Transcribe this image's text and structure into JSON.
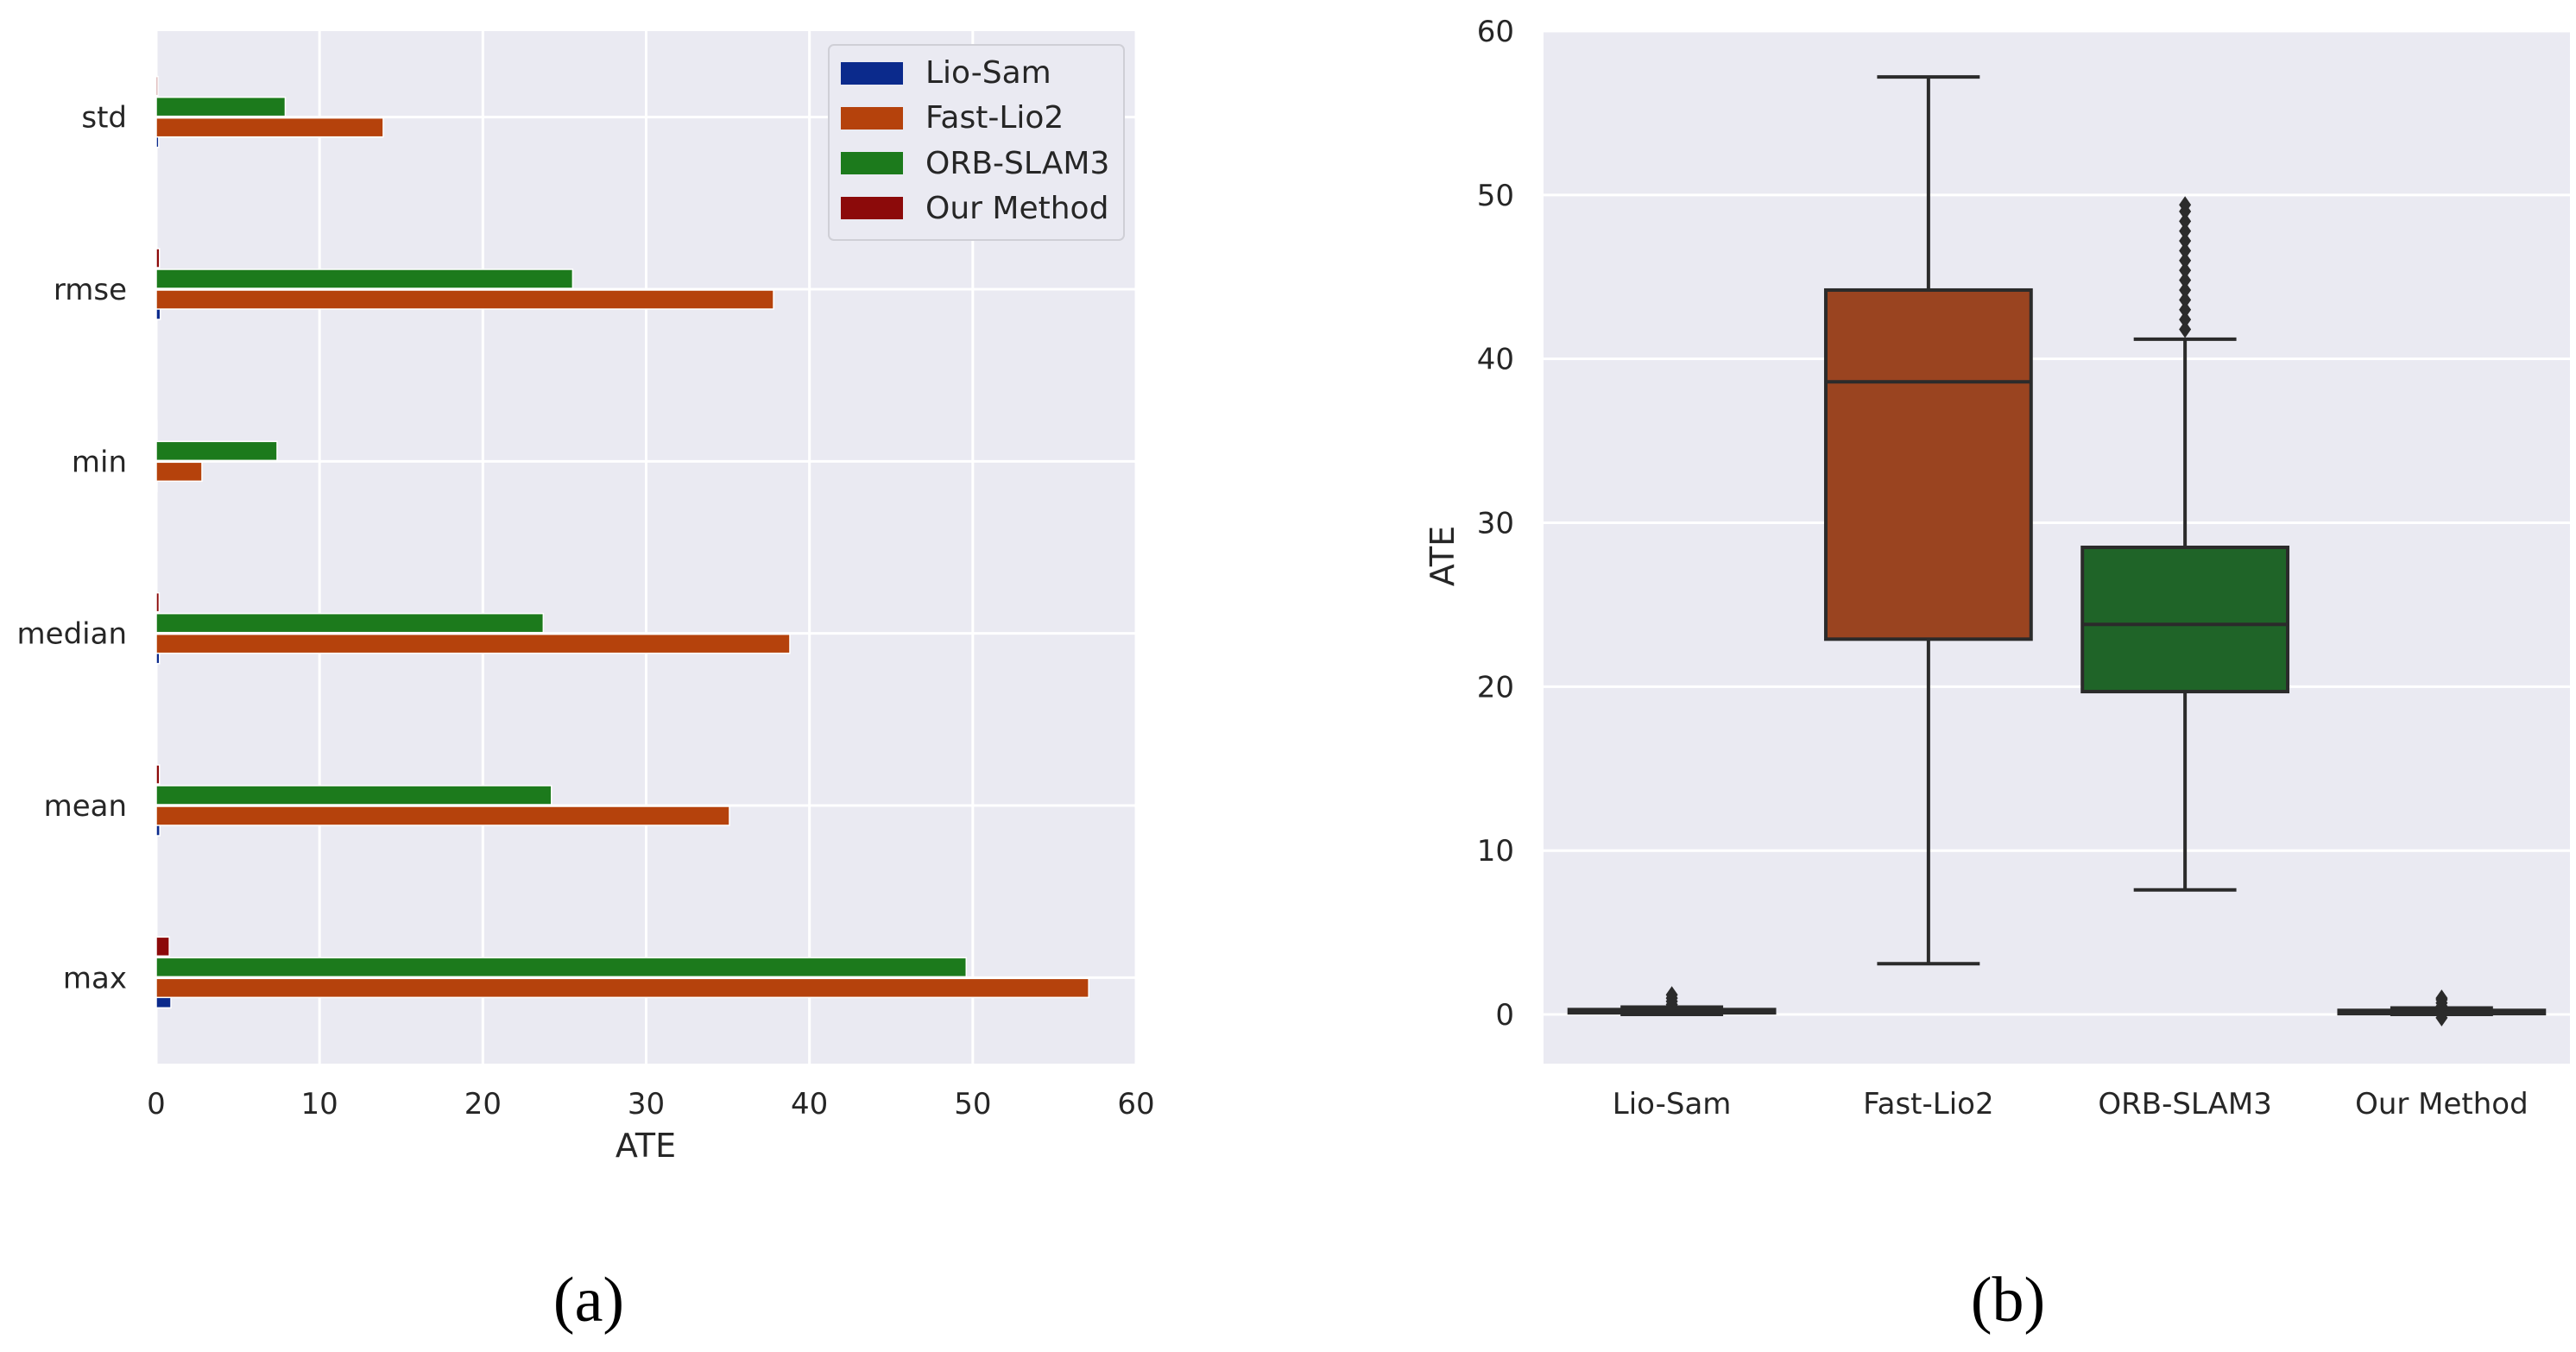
{
  "colors": {
    "background": "#EAEAF2",
    "grid": "#FFFFFF",
    "Lio-Sam": "#0B2A8C",
    "Fast-Lio2": "#B5420C",
    "ORB-SLAM3": "#1C7A1C",
    "Our Method": "#8C0A0A",
    "box_fast": "#9A4420",
    "box_orb": "#1F6428",
    "box_edge": "#2B2B2B"
  },
  "chart_data": [
    {
      "id": "a",
      "type": "bar",
      "orientation": "horizontal",
      "panel_label": "(a)",
      "xlabel": "ATE",
      "ylabel": "",
      "xlim": [
        0,
        60
      ],
      "xticks": [
        "0",
        "10",
        "20",
        "30",
        "40",
        "50",
        "60"
      ],
      "categories": [
        "std",
        "rmse",
        "min",
        "median",
        "mean",
        "max"
      ],
      "series": [
        {
          "name": "Lio-Sam",
          "values": [
            0.15,
            0.25,
            0.05,
            0.2,
            0.22,
            0.9
          ]
        },
        {
          "name": "Fast-Lio2",
          "values": [
            13.9,
            37.8,
            2.8,
            38.8,
            35.1,
            57.1
          ]
        },
        {
          "name": "ORB-SLAM3",
          "values": [
            7.9,
            25.5,
            7.4,
            23.7,
            24.2,
            49.6
          ]
        },
        {
          "name": "Our Method",
          "values": [
            0.1,
            0.2,
            0.05,
            0.18,
            0.2,
            0.8
          ]
        }
      ],
      "legend": [
        "Lio-Sam",
        "Fast-Lio2",
        "ORB-SLAM3",
        "Our Method"
      ],
      "legend_position": "top-right",
      "grid": true
    },
    {
      "id": "b",
      "type": "box",
      "panel_label": "(b)",
      "xlabel": "",
      "ylabel": "ATE",
      "ylim": [
        -3,
        60
      ],
      "yticks": [
        "0",
        "10",
        "20",
        "30",
        "40",
        "50",
        "60"
      ],
      "categories": [
        "Lio-Sam",
        "Fast-Lio2",
        "ORB-SLAM3",
        "Our Method"
      ],
      "boxes": [
        {
          "name": "Lio-Sam",
          "whisker_low": 0.0,
          "q1": 0.1,
          "median": 0.2,
          "q3": 0.3,
          "whisker_high": 0.45,
          "outliers": [
            0.6,
            0.8,
            1.0,
            1.2
          ]
        },
        {
          "name": "Fast-Lio2",
          "whisker_low": 3.1,
          "q1": 22.9,
          "median": 38.6,
          "q3": 44.2,
          "whisker_high": 57.2,
          "outliers": []
        },
        {
          "name": "ORB-SLAM3",
          "whisker_low": 7.6,
          "q1": 19.7,
          "median": 23.8,
          "q3": 28.5,
          "whisker_high": 41.2,
          "outliers": [
            41.8,
            42.4,
            43.0,
            43.6,
            44.2,
            44.8,
            45.4,
            46.0,
            46.6,
            47.2,
            47.8,
            48.4,
            49.0,
            49.4
          ]
        },
        {
          "name": "Our Method",
          "whisker_low": 0.0,
          "q1": 0.05,
          "median": 0.15,
          "q3": 0.25,
          "whisker_high": 0.4,
          "outliers": [
            -0.2,
            0.5,
            0.7,
            0.9,
            1.0
          ]
        }
      ],
      "grid": true
    }
  ]
}
